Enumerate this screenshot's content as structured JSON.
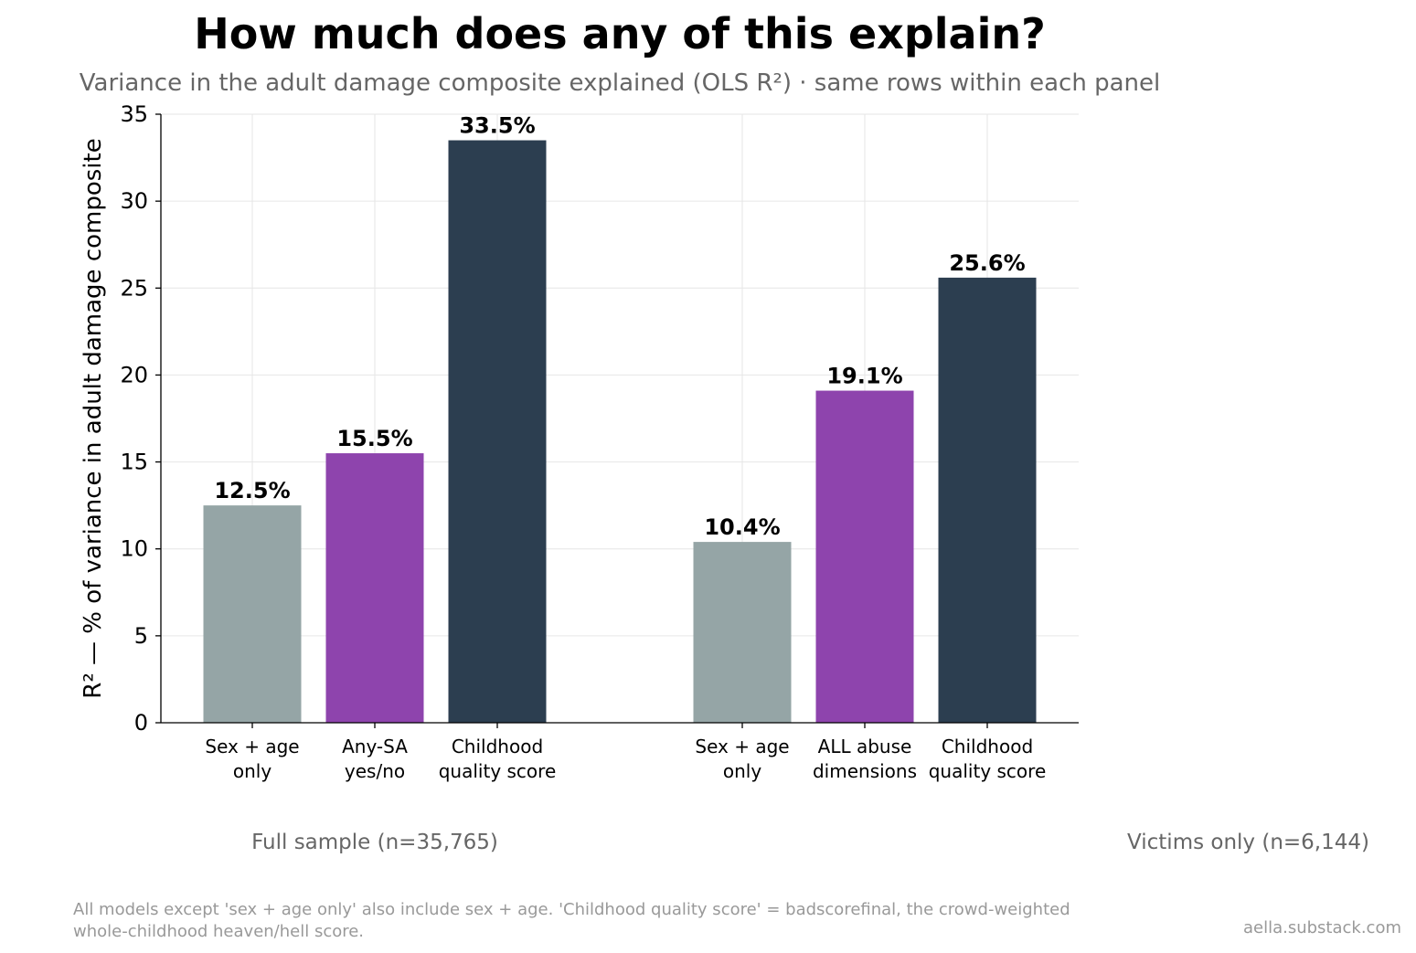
{
  "title": "How much does any of this explain?",
  "subtitle": "Variance in the adult damage composite explained (OLS R²) · same rows within each panel",
  "ylabel": "R² — % of variance in adult damage composite",
  "footnote": [
    "All models except 'sex + age only' also include sex + age. 'Childhood quality score' = badscorefinal, the crowd-weighted",
    "whole-childhood heaven/hell score."
  ],
  "credit": "aella.substack.com",
  "colors": {
    "sex_age": "#95a5a6",
    "abuse": "#8e44ad",
    "childhood": "#2c3e50"
  },
  "chart_data": {
    "type": "bar",
    "ylim": [
      0,
      35
    ],
    "yticks": [
      0,
      5,
      10,
      15,
      20,
      25,
      30,
      35
    ],
    "grid": true,
    "panels": [
      {
        "label": "Full sample (n=35,765)",
        "bars": [
          {
            "category": [
              "Sex + age",
              "only"
            ],
            "value": 12.5,
            "label": "12.5%",
            "color_key": "sex_age"
          },
          {
            "category": [
              "Any-SA",
              "yes/no"
            ],
            "value": 15.5,
            "label": "15.5%",
            "color_key": "abuse"
          },
          {
            "category": [
              "Childhood",
              "quality score"
            ],
            "value": 33.5,
            "label": "33.5%",
            "color_key": "childhood"
          }
        ]
      },
      {
        "label": "Victims only (n=6,144)",
        "bars": [
          {
            "category": [
              "Sex + age",
              "only"
            ],
            "value": 10.4,
            "label": "10.4%",
            "color_key": "sex_age"
          },
          {
            "category": [
              "ALL abuse",
              "dimensions"
            ],
            "value": 19.1,
            "label": "19.1%",
            "color_key": "abuse"
          },
          {
            "category": [
              "Childhood",
              "quality score"
            ],
            "value": 25.6,
            "label": "25.6%",
            "color_key": "childhood"
          }
        ]
      }
    ]
  }
}
